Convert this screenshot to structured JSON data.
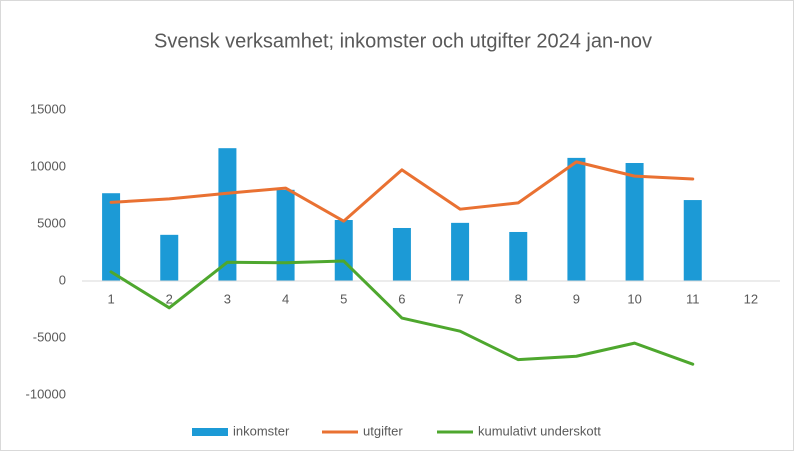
{
  "chart_data": {
    "type": "bar_line",
    "title": "Svensk verksamhet; inkomster och utgifter 2024 jan-nov",
    "categories": [
      "1",
      "2",
      "3",
      "4",
      "5",
      "6",
      "7",
      "8",
      "9",
      "10",
      "11",
      "12"
    ],
    "series": [
      {
        "name": "inkomster",
        "type": "bar",
        "color": "#1c9ad6",
        "values": [
          7700,
          4050,
          11650,
          8000,
          5350,
          4650,
          5100,
          4300,
          10800,
          10350,
          7100,
          null
        ]
      },
      {
        "name": "utgifter",
        "type": "line",
        "color": "#e97132",
        "values": [
          6900,
          7200,
          7700,
          8150,
          5250,
          9750,
          6300,
          6850,
          10450,
          9200,
          8950,
          null
        ]
      },
      {
        "name": "kumulativt underskott",
        "type": "line",
        "color": "#4ea72e",
        "values": [
          800,
          -2350,
          1650,
          1600,
          1750,
          -3250,
          -4400,
          -6900,
          -6600,
          -5450,
          -7300,
          null
        ]
      }
    ],
    "ylim": [
      -10000,
      15000
    ],
    "yticks": [
      -10000,
      -5000,
      0,
      5000,
      10000,
      15000
    ],
    "grid": false,
    "legend": "bottom"
  }
}
